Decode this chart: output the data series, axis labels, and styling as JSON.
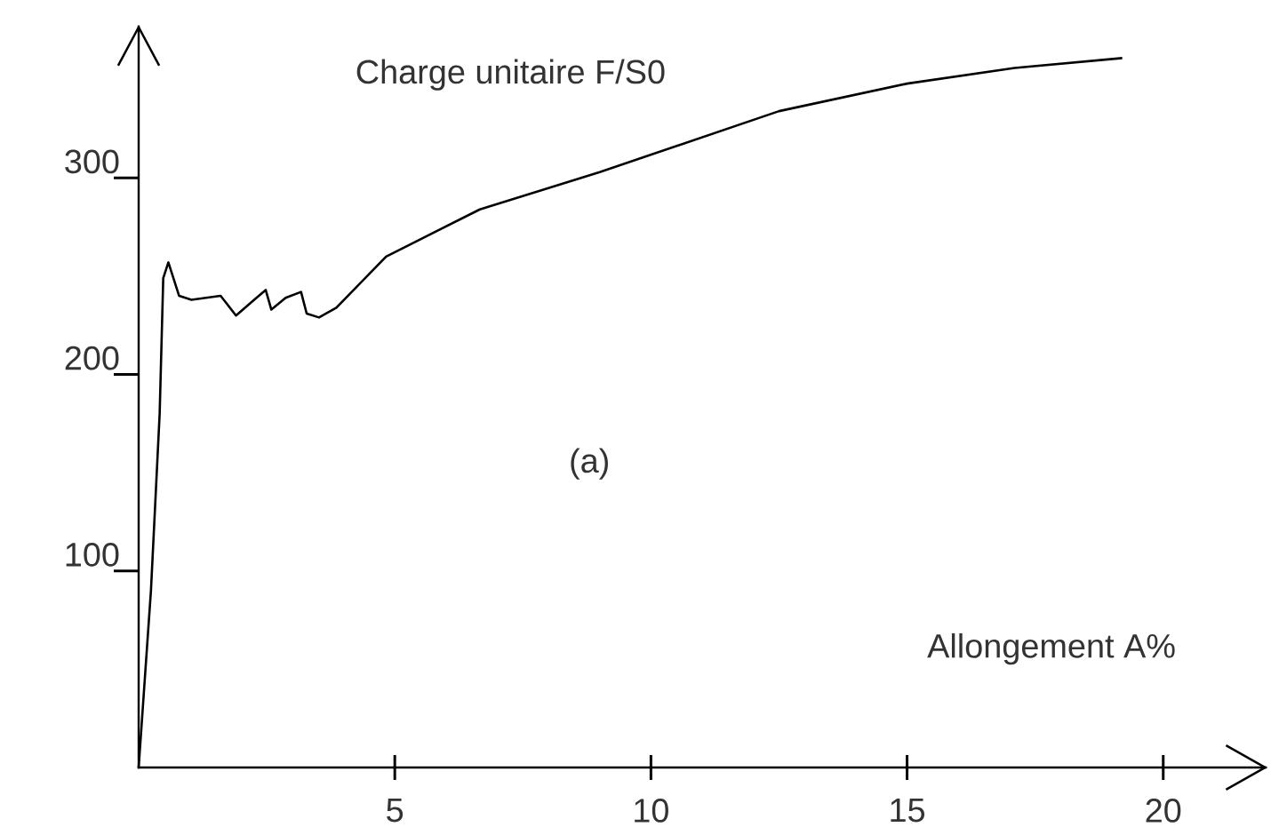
{
  "chart_data": {
    "type": "line",
    "xlabel": "Allongement A%",
    "ylabel": "Charge unitaire F/S0",
    "annotations": [
      "(a)"
    ],
    "x": [
      0,
      0.24,
      0.41,
      0.48,
      0.58,
      0.79,
      1.03,
      1.6,
      1.9,
      2.3,
      2.48,
      2.59,
      2.87,
      3.17,
      3.28,
      3.52,
      3.86,
      4.83,
      6.66,
      9.0,
      12.5,
      15.0,
      17.1,
      19.2
    ],
    "series": [
      {
        "color": "#000000",
        "values": [
          0,
          90,
          180,
          249,
          257,
          240,
          238,
          240,
          230,
          239,
          243,
          233,
          239,
          242,
          231,
          229,
          234,
          260,
          284,
          303,
          334,
          348,
          356,
          361
        ]
      }
    ],
    "xlim": [
      0,
      22
    ],
    "ylim": [
      0,
      377
    ],
    "xticks": [
      5,
      10,
      15,
      20
    ],
    "yticks": [
      100,
      200,
      300
    ],
    "grid": false,
    "marker": "none",
    "line_style": "solid"
  }
}
